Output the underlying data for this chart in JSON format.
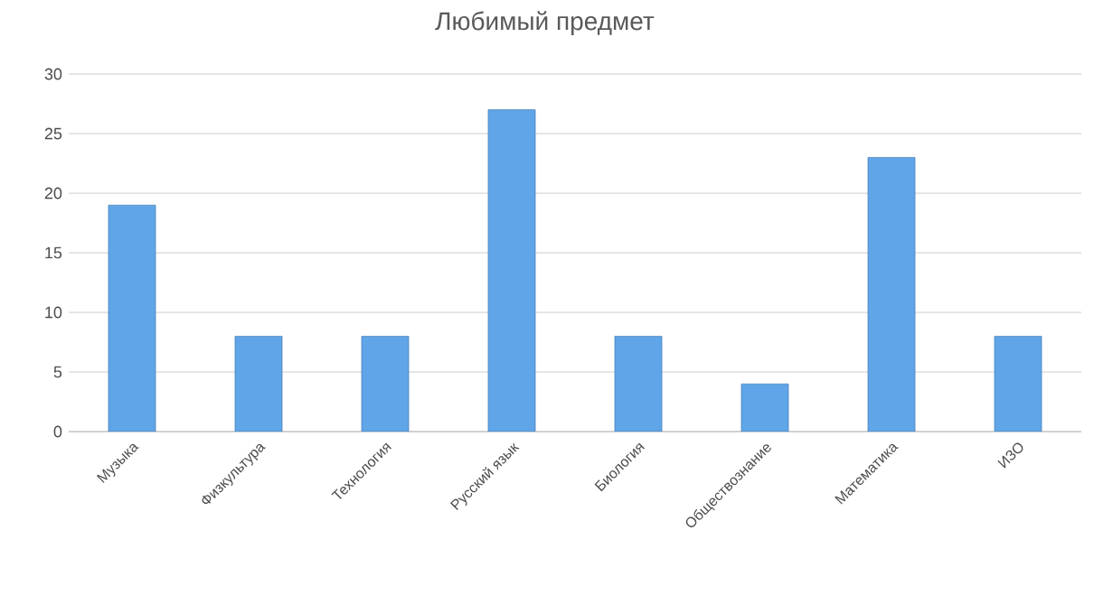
{
  "chart_data": {
    "type": "bar",
    "title": "Любимый предмет",
    "categories": [
      "Музыка",
      "Физкультура",
      "Технология",
      "Русский язык",
      "Биология",
      "Обществознание",
      "Математика",
      "ИЗО"
    ],
    "values": [
      19,
      8,
      8,
      27,
      8,
      4,
      23,
      8
    ],
    "color": "#5fa5e8",
    "ylim": [
      0,
      30
    ],
    "yticks": [
      0,
      5,
      10,
      15,
      20,
      25,
      30
    ],
    "grid": true
  }
}
